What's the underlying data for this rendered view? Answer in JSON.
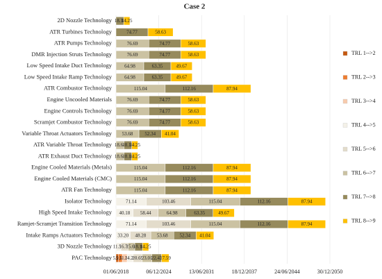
{
  "chart_data": {
    "type": "stacked-bar-horizontal",
    "title": "Case 2",
    "categories": [
      "2D Nozzle Technology",
      "ATR Turbines Technology",
      "ATR Pumps Technology",
      "DMR Injection Struts Technology",
      "Low Speed Intake Duct Technology",
      "Low Speed Intake Ramp Technology",
      "ATR Combustor Technology",
      "Engine Uncooled Materials",
      "Engine Controls Technology",
      "Scramjet Combustor Technology",
      "Variable Throat Actuators Technology",
      "ATR Variable Throat Technology",
      "ATR Exhaust Duct Technology",
      "Engine Cooled Materials (Metals)",
      "Engine Cooled Materials (CMC)",
      "ATR Fan Technology",
      "Isolator Technology",
      "High Speed Intake Technology",
      "Ramjet-Scramjet Transition Technology",
      "Intake Ramps Actuators Technology",
      "3D Nozzle Technology",
      "PAC Technology"
    ],
    "series": [
      {
        "name": "TRL 1-->2",
        "color": "#c55a11",
        "values": [
          null,
          null,
          null,
          null,
          null,
          null,
          null,
          null,
          null,
          null,
          null,
          null,
          null,
          null,
          null,
          null,
          null,
          null,
          null,
          null,
          null,
          5.24
        ]
      },
      {
        "name": "TRL 2-->3",
        "color": "#ed7d31",
        "values": [
          null,
          null,
          null,
          null,
          null,
          null,
          null,
          null,
          null,
          null,
          null,
          null,
          null,
          null,
          null,
          null,
          null,
          null,
          null,
          null,
          null,
          9.53
        ]
      },
      {
        "name": "TRL 3-->4",
        "color": "#f8cbad",
        "values": [
          null,
          null,
          null,
          null,
          null,
          null,
          null,
          null,
          null,
          null,
          null,
          null,
          null,
          null,
          null,
          null,
          null,
          null,
          null,
          null,
          null,
          11.31
        ]
      },
      {
        "name": "TRL 4-->5",
        "color": "#f4f1e8",
        "values": [
          null,
          null,
          null,
          null,
          null,
          null,
          null,
          null,
          null,
          null,
          null,
          null,
          null,
          null,
          null,
          null,
          71.14,
          40.18,
          71.14,
          33.2,
          11.53,
          14.23
        ],
        "value_labels": [
          null,
          null,
          null,
          null,
          null,
          null,
          null,
          null,
          null,
          null,
          null,
          null,
          null,
          null,
          null,
          null,
          "71.14",
          "40.18",
          "71.14",
          "33.20",
          "11.53",
          "14.23"
        ]
      },
      {
        "name": "TRL 5-->6",
        "color": "#e3dccb",
        "values": [
          null,
          null,
          null,
          null,
          null,
          null,
          null,
          null,
          null,
          null,
          null,
          null,
          null,
          null,
          null,
          null,
          103.46,
          58.44,
          103.46,
          48.28,
          16.77,
          20.69
        ]
      },
      {
        "name": "TRL 6-->7",
        "color": "#cbc2a2",
        "values": [
          null,
          null,
          76.69,
          76.69,
          64.98,
          64.98,
          115.04,
          76.69,
          76.69,
          76.69,
          53.68,
          18.64,
          18.64,
          115.04,
          115.04,
          115.04,
          115.04,
          64.98,
          115.04,
          53.68,
          15.64,
          23.01
        ]
      },
      {
        "name": "TRL 7-->8",
        "color": "#968a5c",
        "values": [
          18.18,
          74.77,
          74.77,
          74.77,
          63.35,
          63.35,
          112.16,
          74.77,
          74.77,
          74.77,
          52.34,
          18.18,
          18.18,
          112.16,
          112.16,
          112.16,
          112.16,
          63.35,
          112.16,
          52.34,
          18.18,
          22.43
        ]
      },
      {
        "name": "TRL 8-->9",
        "color": "#ffc000",
        "values": [
          14.25,
          58.63,
          58.63,
          58.63,
          49.67,
          49.67,
          87.94,
          58.63,
          58.63,
          58.63,
          41.04,
          14.25,
          14.25,
          87.94,
          87.94,
          87.94,
          87.94,
          49.67,
          87.94,
          41.04,
          14.25,
          17.59
        ]
      }
    ],
    "xlim": [
      0,
      500
    ],
    "xticks": [
      {
        "value": 0,
        "label": "01/06/2018"
      },
      {
        "value": 100,
        "label": "06/12/2024"
      },
      {
        "value": 200,
        "label": "13/06/2031"
      },
      {
        "value": 300,
        "label": "18/12/2037"
      },
      {
        "value": 400,
        "label": "24/06/2044"
      },
      {
        "value": 500,
        "label": "30/12/2050"
      }
    ],
    "grid": true
  }
}
